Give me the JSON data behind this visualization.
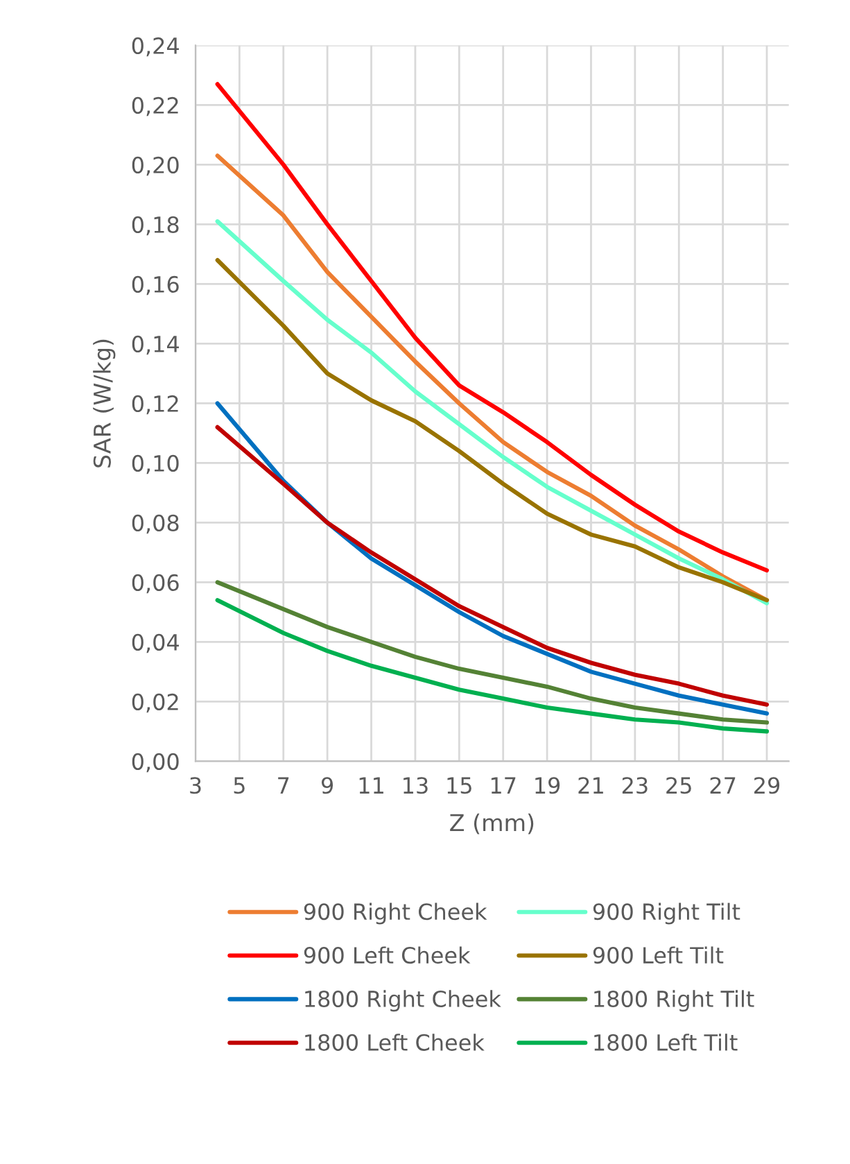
{
  "chart_data": {
    "type": "line",
    "xlabel": "Z (mm)",
    "ylabel": "SAR (W/kg)",
    "x": [
      4,
      7,
      9,
      11,
      13,
      15,
      17,
      19,
      21,
      23,
      25,
      27,
      29
    ],
    "xlim": [
      3,
      30
    ],
    "xticks": [
      3,
      5,
      7,
      9,
      11,
      13,
      15,
      17,
      19,
      21,
      23,
      25,
      27,
      29
    ],
    "ylim": [
      0,
      0.24
    ],
    "yticks": [
      {
        "value": 0,
        "label": "0,00"
      },
      {
        "value": 0.02,
        "label": "0,02"
      },
      {
        "value": 0.04,
        "label": "0,04"
      },
      {
        "value": 0.06,
        "label": "0,06"
      },
      {
        "value": 0.08,
        "label": "0,08"
      },
      {
        "value": 0.1,
        "label": "0,10"
      },
      {
        "value": 0.12,
        "label": "0,12"
      },
      {
        "value": 0.14,
        "label": "0,14"
      },
      {
        "value": 0.16,
        "label": "0,16"
      },
      {
        "value": 0.18,
        "label": "0,18"
      },
      {
        "value": 0.2,
        "label": "0,20"
      },
      {
        "value": 0.22,
        "label": "0,22"
      },
      {
        "value": 0.24,
        "label": "0,24"
      }
    ],
    "grid": true,
    "legend": "bottom",
    "marker": "none",
    "line_style": "solid",
    "series": [
      {
        "name": "900 Right Cheek",
        "color": "#ed7d31",
        "values": [
          0.203,
          0.183,
          0.164,
          0.149,
          0.134,
          0.12,
          0.107,
          0.097,
          0.089,
          0.079,
          0.071,
          0.062,
          0.054
        ]
      },
      {
        "name": "900 Right Tilt",
        "color": "#66ffcc",
        "values": [
          0.181,
          0.161,
          0.148,
          0.137,
          0.124,
          0.113,
          0.102,
          0.092,
          0.084,
          0.076,
          0.068,
          0.061,
          0.053
        ]
      },
      {
        "name": "900 Left Cheek",
        "color": "#ff0000",
        "values": [
          0.227,
          0.2,
          0.18,
          0.161,
          0.142,
          0.126,
          0.117,
          0.107,
          0.096,
          0.086,
          0.077,
          0.07,
          0.064
        ]
      },
      {
        "name": "900 Left Tilt",
        "color": "#997300",
        "values": [
          0.168,
          0.146,
          0.13,
          0.121,
          0.114,
          0.104,
          0.093,
          0.083,
          0.076,
          0.072,
          0.065,
          0.06,
          0.054
        ]
      },
      {
        "name": "1800 Right Cheek",
        "color": "#0070c0",
        "values": [
          0.12,
          0.094,
          0.08,
          0.068,
          0.059,
          0.05,
          0.042,
          0.036,
          0.03,
          0.026,
          0.022,
          0.019,
          0.016
        ]
      },
      {
        "name": "1800 Right Tilt",
        "color": "#548235",
        "values": [
          0.06,
          0.051,
          0.045,
          0.04,
          0.035,
          0.031,
          0.028,
          0.025,
          0.021,
          0.018,
          0.016,
          0.014,
          0.013
        ]
      },
      {
        "name": "1800 Left Cheek",
        "color": "#c00000",
        "values": [
          0.112,
          0.093,
          0.08,
          0.07,
          0.061,
          0.052,
          0.045,
          0.038,
          0.033,
          0.029,
          0.026,
          0.022,
          0.019
        ]
      },
      {
        "name": "1800 Left Tilt",
        "color": "#00b050",
        "values": [
          0.054,
          0.043,
          0.037,
          0.032,
          0.028,
          0.024,
          0.021,
          0.018,
          0.016,
          0.014,
          0.013,
          0.011,
          0.01
        ]
      }
    ]
  }
}
